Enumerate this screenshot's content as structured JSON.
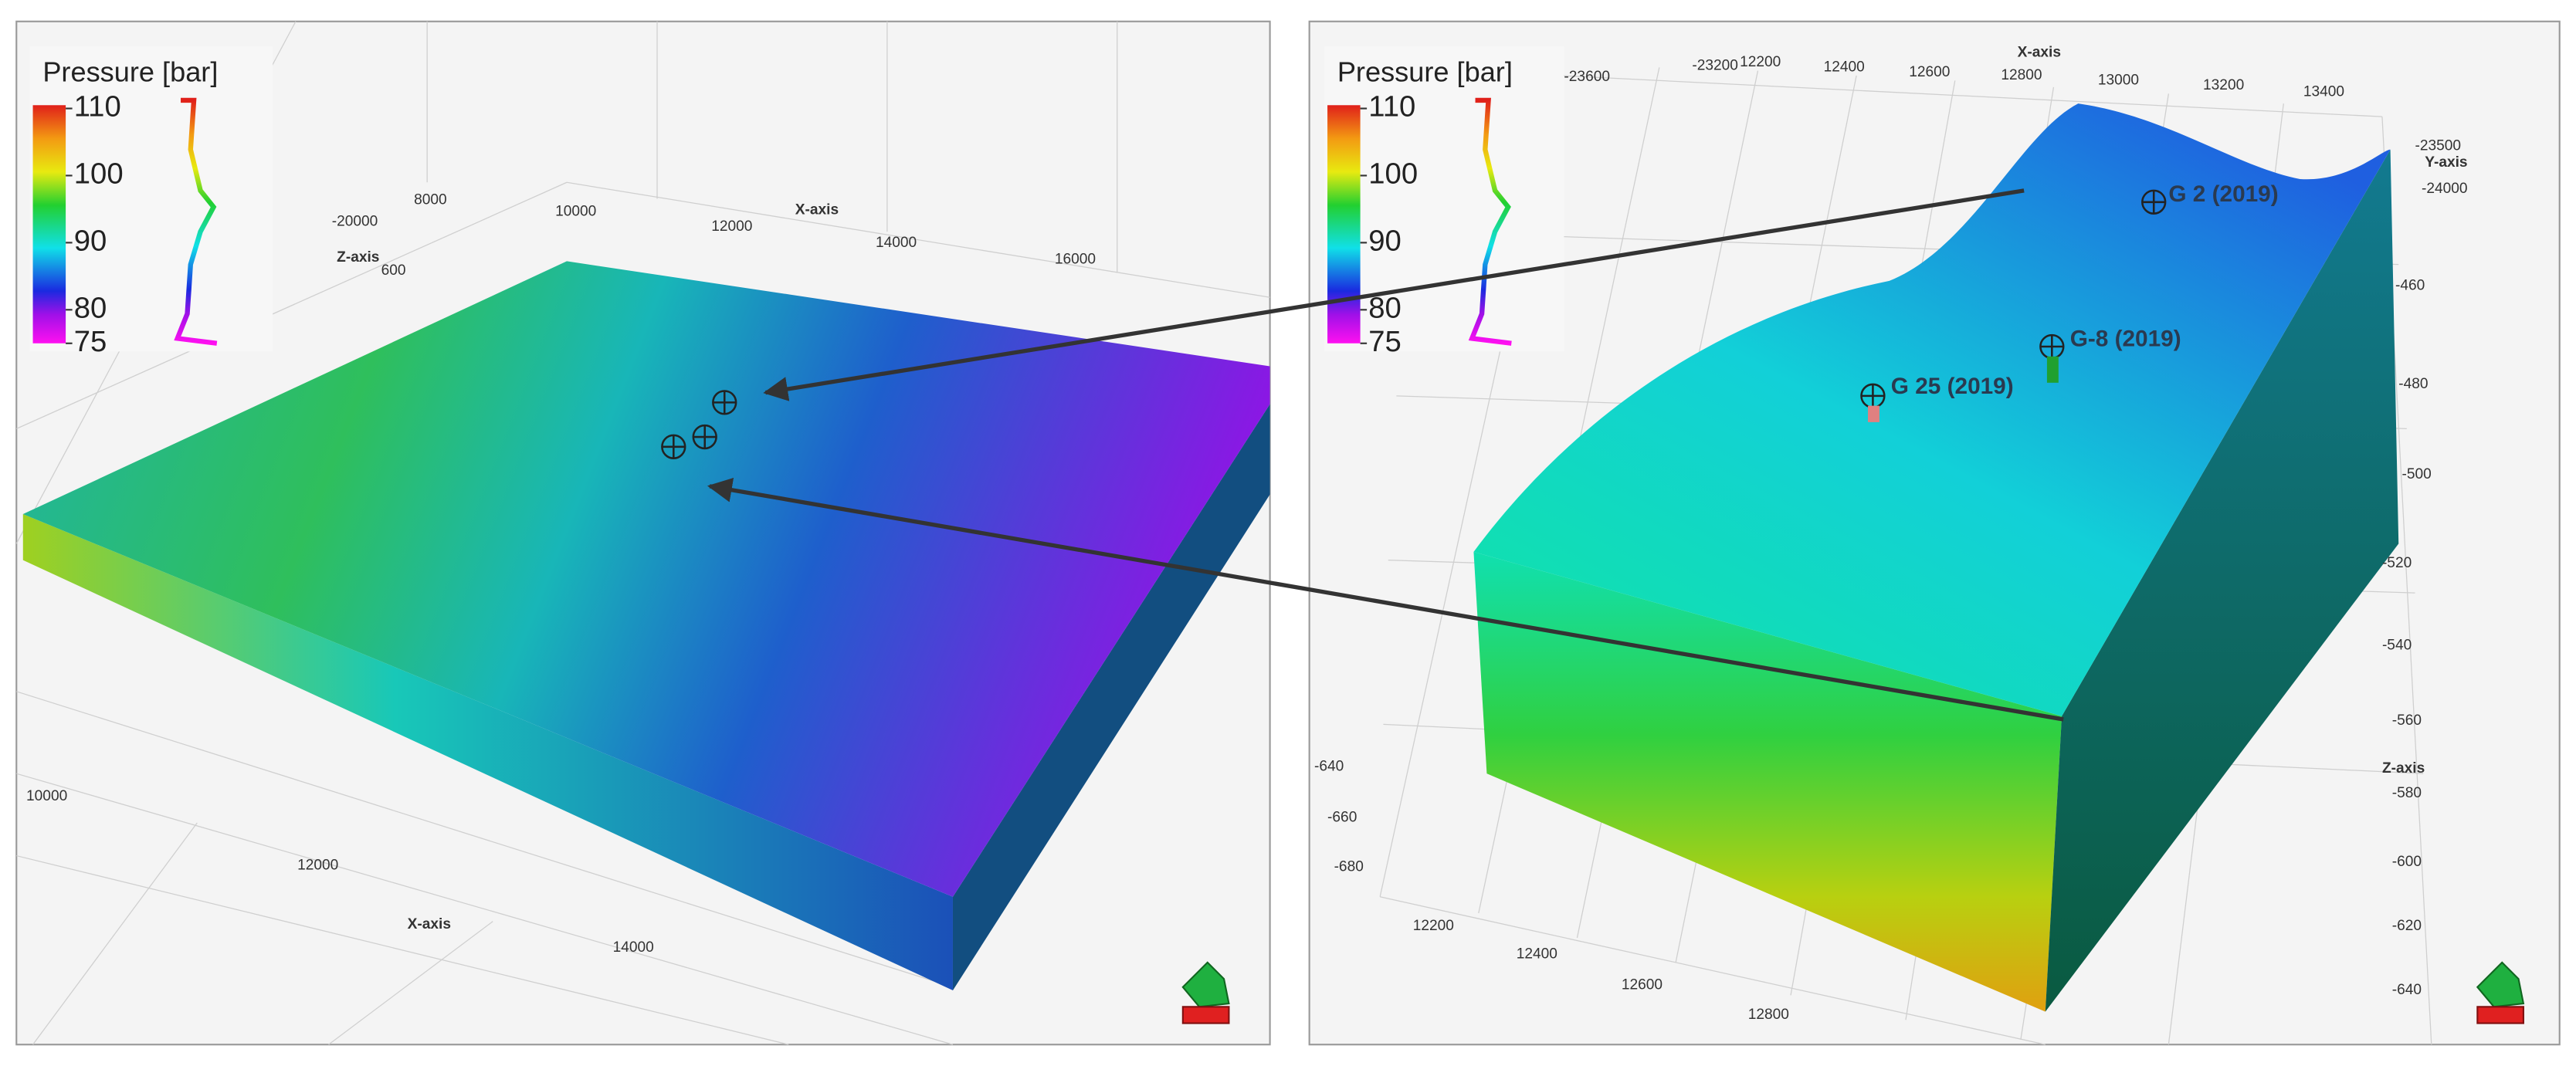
{
  "panels": [
    {
      "legend": {
        "title": "Pressure [bar]",
        "ticks": [
          110,
          100,
          90,
          80,
          75
        ]
      },
      "axis_labels": [
        "X-axis",
        "Z-axis",
        "X-axis"
      ],
      "tick_labels": [
        "8000",
        "10000",
        "12000",
        "14000",
        "16000",
        "-20000",
        "600",
        "10000",
        "12000",
        "14000"
      ],
      "wells": []
    },
    {
      "legend": {
        "title": "Pressure [bar]",
        "ticks": [
          110,
          100,
          90,
          80,
          75
        ]
      },
      "axis_labels": [
        "X-axis",
        "Y-axis",
        "Z-axis"
      ],
      "tick_labels": [
        "-23600",
        "-23200",
        "12200",
        "12400",
        "12600",
        "12800",
        "13000",
        "13200",
        "13400",
        "-23500",
        "-24000",
        "-460",
        "-480",
        "-500",
        "-520",
        "-540",
        "-560",
        "-580",
        "-600",
        "-620",
        "-640",
        "-640",
        "-660",
        "-680",
        "12200",
        "12400",
        "12600",
        "12800"
      ],
      "wells": [
        "G 2 (2019)",
        "G-8 (2019)",
        "G 25 (2019)"
      ]
    }
  ]
}
